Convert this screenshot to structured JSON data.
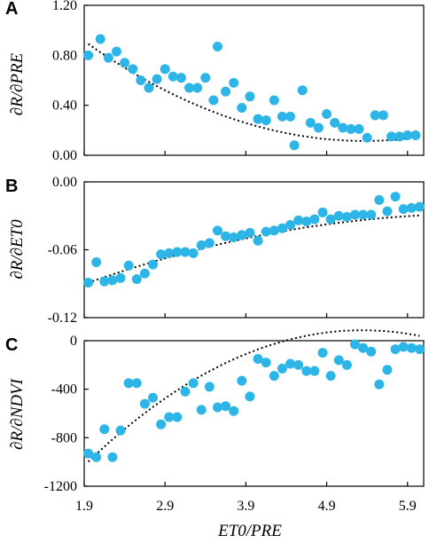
{
  "xaxis": {
    "label": "ET0/PRE",
    "range": [
      1.9,
      6.1
    ],
    "ticks": [
      1.9,
      2.9,
      3.9,
      4.9,
      5.9
    ],
    "tick_labels": [
      "1.9",
      "2.9",
      "3.9",
      "4.9",
      "5.9"
    ]
  },
  "colors": {
    "points": "#2cb5e6",
    "trend": "#000000"
  },
  "chart_data": [
    {
      "type": "scatter",
      "panel_label": "A",
      "ylabel": "∂R/∂PRE",
      "ylim": [
        0,
        1.2
      ],
      "yticks": [
        0,
        0.4,
        0.8,
        1.2
      ],
      "ytick_labels": [
        "0.00",
        "0.40",
        "0.80",
        "1.20"
      ],
      "x": [
        1.95,
        2.1,
        2.2,
        2.3,
        2.4,
        2.5,
        2.6,
        2.7,
        2.8,
        2.9,
        3.0,
        3.1,
        3.2,
        3.3,
        3.4,
        3.5,
        3.55,
        3.65,
        3.75,
        3.85,
        3.95,
        4.05,
        4.15,
        4.25,
        4.35,
        4.45,
        4.5,
        4.6,
        4.7,
        4.8,
        4.9,
        5.0,
        5.1,
        5.2,
        5.3,
        5.4,
        5.5,
        5.6,
        5.7,
        5.8,
        5.9,
        6.0
      ],
      "y": [
        0.8,
        0.93,
        0.78,
        0.83,
        0.74,
        0.69,
        0.6,
        0.54,
        0.61,
        0.69,
        0.63,
        0.62,
        0.54,
        0.54,
        0.62,
        0.44,
        0.87,
        0.51,
        0.58,
        0.38,
        0.47,
        0.29,
        0.28,
        0.44,
        0.31,
        0.31,
        0.08,
        0.52,
        0.26,
        0.22,
        0.33,
        0.26,
        0.22,
        0.21,
        0.21,
        0.14,
        0.32,
        0.32,
        0.15,
        0.15,
        0.16,
        0.16
      ],
      "trendline": {
        "type": "quadratic",
        "coef": [
          2.0283,
          -0.7124,
          0.0663
        ]
      }
    },
    {
      "type": "scatter",
      "panel_label": "B",
      "ylabel": "∂R/∂ET0",
      "ylim": [
        -0.12,
        0
      ],
      "yticks": [
        -0.12,
        -0.06,
        0
      ],
      "ytick_labels": [
        "-0.12",
        "-0.06",
        "0.00"
      ],
      "x": [
        1.95,
        2.05,
        2.15,
        2.25,
        2.35,
        2.45,
        2.55,
        2.65,
        2.75,
        2.85,
        2.95,
        3.05,
        3.15,
        3.25,
        3.35,
        3.45,
        3.55,
        3.65,
        3.75,
        3.85,
        3.95,
        4.05,
        4.15,
        4.25,
        4.35,
        4.45,
        4.55,
        4.65,
        4.75,
        4.85,
        4.95,
        5.05,
        5.15,
        5.25,
        5.35,
        5.45,
        5.55,
        5.65,
        5.75,
        5.85,
        5.95,
        6.05
      ],
      "y": [
        -0.089,
        -0.071,
        -0.088,
        -0.087,
        -0.085,
        -0.074,
        -0.086,
        -0.081,
        -0.073,
        -0.064,
        -0.063,
        -0.062,
        -0.062,
        -0.063,
        -0.056,
        -0.054,
        -0.043,
        -0.048,
        -0.049,
        -0.047,
        -0.045,
        -0.052,
        -0.044,
        -0.043,
        -0.041,
        -0.038,
        -0.034,
        -0.035,
        -0.033,
        -0.027,
        -0.033,
        -0.03,
        -0.031,
        -0.029,
        -0.029,
        -0.029,
        -0.016,
        -0.026,
        -0.013,
        -0.024,
        -0.023,
        -0.022
      ],
      "trendline": {
        "type": "quadratic",
        "coef": [
          -0.1481,
          0.0353,
          -0.0026
        ]
      }
    },
    {
      "type": "scatter",
      "panel_label": "C",
      "ylabel": "∂R/∂NDVI",
      "ylim": [
        -1200,
        0
      ],
      "yticks": [
        -1200,
        -800,
        -400,
        0
      ],
      "ytick_labels": [
        "-1200",
        "-800",
        "-400",
        "0"
      ],
      "x": [
        1.95,
        2.05,
        2.15,
        2.25,
        2.35,
        2.45,
        2.55,
        2.65,
        2.75,
        2.85,
        2.95,
        3.05,
        3.15,
        3.25,
        3.35,
        3.45,
        3.55,
        3.65,
        3.75,
        3.85,
        3.95,
        4.05,
        4.15,
        4.25,
        4.35,
        4.45,
        4.55,
        4.65,
        4.75,
        4.85,
        4.95,
        5.05,
        5.15,
        5.25,
        5.35,
        5.45,
        5.55,
        5.65,
        5.75,
        5.85,
        5.95,
        6.05
      ],
      "y": [
        -930,
        -960,
        -730,
        -960,
        -740,
        -350,
        -350,
        -520,
        -470,
        -690,
        -630,
        -630,
        -420,
        -350,
        -570,
        -380,
        -550,
        -540,
        -580,
        -330,
        -460,
        -150,
        -180,
        -290,
        -230,
        -190,
        -200,
        -250,
        -250,
        -100,
        -290,
        -160,
        -200,
        -30,
        -60,
        -90,
        -360,
        -240,
        -70,
        -50,
        -60,
        -70
      ],
      "trendline": {
        "type": "quadratic",
        "coef": [
          -2600,
          1005,
          -94
        ]
      }
    }
  ]
}
